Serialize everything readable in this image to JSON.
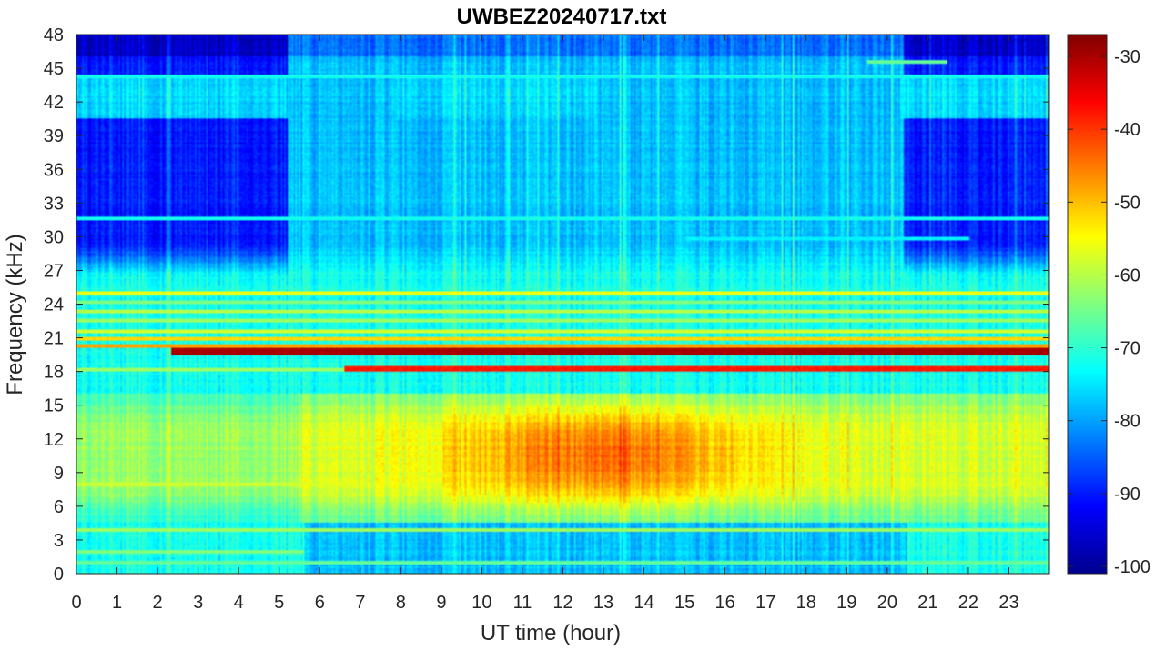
{
  "chart_data": {
    "type": "heatmap",
    "title": "UWBEZ20240717.txt",
    "xlabel": "UT time (hour)",
    "ylabel": "Frequency (kHz)",
    "xlim": [
      0,
      24
    ],
    "ylim": [
      0,
      48
    ],
    "x_ticks": [
      0,
      1,
      2,
      3,
      4,
      5,
      6,
      7,
      8,
      9,
      10,
      11,
      12,
      13,
      14,
      15,
      16,
      17,
      18,
      19,
      20,
      21,
      22,
      23
    ],
    "y_ticks": [
      0,
      3,
      6,
      9,
      12,
      15,
      18,
      21,
      24,
      27,
      30,
      33,
      36,
      39,
      42,
      45,
      48
    ],
    "colorbar": {
      "colormap": "jet",
      "clim": [
        -101,
        -27
      ],
      "ticks": [
        -100,
        -90,
        -80,
        -70,
        -60,
        -50,
        -40,
        -30
      ]
    },
    "features": {
      "narrowband_lines": [
        {
          "freq_khz": 19.8,
          "start_hour": 2.35,
          "end_hour": 24,
          "level_db": -30
        },
        {
          "freq_khz": 18.2,
          "start_hour": 6.6,
          "end_hour": 24,
          "level_db": -38
        },
        {
          "freq_khz": 18.2,
          "start_hour": 0,
          "end_hour": 6.6,
          "level_db": -62
        },
        {
          "freq_khz": 25.0,
          "start_hour": 0,
          "end_hour": 24,
          "level_db": -56
        },
        {
          "freq_khz": 24.2,
          "start_hour": 0,
          "end_hour": 24,
          "level_db": -64
        },
        {
          "freq_khz": 23.4,
          "start_hour": 0,
          "end_hour": 24,
          "level_db": -60
        },
        {
          "freq_khz": 22.6,
          "start_hour": 0,
          "end_hour": 24,
          "level_db": -62
        },
        {
          "freq_khz": 21.6,
          "start_hour": 0,
          "end_hour": 24,
          "level_db": -58
        },
        {
          "freq_khz": 20.9,
          "start_hour": 0,
          "end_hour": 24,
          "level_db": -52
        },
        {
          "freq_khz": 20.3,
          "start_hour": 0,
          "end_hour": 24,
          "level_db": -48
        },
        {
          "freq_khz": 44.3,
          "start_hour": 0,
          "end_hour": 24,
          "level_db": -72
        },
        {
          "freq_khz": 31.6,
          "start_hour": 0,
          "end_hour": 24,
          "level_db": -72
        },
        {
          "freq_khz": 8.0,
          "start_hour": 0,
          "end_hour": 24,
          "level_db": -58
        },
        {
          "freq_khz": 3.9,
          "start_hour": 0,
          "end_hour": 24,
          "level_db": -62
        },
        {
          "freq_khz": 2.0,
          "start_hour": 0,
          "end_hour": 5.6,
          "level_db": -64
        },
        {
          "freq_khz": 1.0,
          "start_hour": 0,
          "end_hour": 24,
          "level_db": -66
        },
        {
          "freq_khz": 45.6,
          "start_hour": 19.5,
          "end_hour": 21.5,
          "level_db": -66
        },
        {
          "freq_khz": 29.8,
          "start_hour": 15.0,
          "end_hour": 22.0,
          "level_db": -74
        }
      ],
      "broadband_maximum": {
        "freq_range_khz": [
          7,
          14
        ],
        "hour_range": [
          10,
          16
        ],
        "peak_level_db": -48
      },
      "quiet_high_band": {
        "freq_range_khz": [
          26,
          48
        ],
        "hours_before": 5.2,
        "hours_after": 20.4,
        "level_db": -90
      },
      "band_40_45khz": {
        "freq_range_khz": [
          40.5,
          44.2
        ],
        "level_db": -76
      }
    }
  }
}
